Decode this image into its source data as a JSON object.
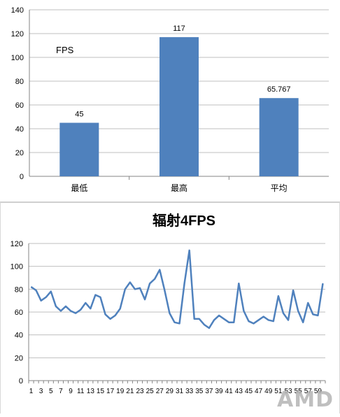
{
  "watermark": "AMD",
  "chart_data": [
    {
      "type": "bar",
      "title": "",
      "annotation": "FPS",
      "categories": [
        "最低",
        "最高",
        "平均"
      ],
      "values": [
        45,
        117,
        65.767
      ],
      "value_labels": [
        "45",
        "117",
        "65.767"
      ],
      "ylim": [
        0,
        140
      ],
      "yticks": [
        0,
        20,
        40,
        60,
        80,
        100,
        120,
        140
      ],
      "grid": true,
      "legend": "none",
      "colors": {
        "bar": "#4f81bd",
        "grid": "#bfbfbf",
        "axis": "#868686"
      }
    },
    {
      "type": "line",
      "title": "辐射4FPS",
      "x": [
        1,
        2,
        3,
        4,
        5,
        6,
        7,
        8,
        9,
        10,
        11,
        12,
        13,
        14,
        15,
        16,
        17,
        18,
        19,
        20,
        21,
        22,
        23,
        24,
        25,
        26,
        27,
        28,
        29,
        30,
        31,
        32,
        33,
        34,
        35,
        36,
        37,
        38,
        39,
        40,
        41,
        42,
        43,
        44,
        45,
        46,
        47,
        48,
        49,
        50,
        51,
        52,
        53,
        54,
        55,
        56,
        57,
        58,
        59,
        60
      ],
      "xtick_labels": [
        "1",
        "3",
        "5",
        "7",
        "9",
        "11",
        "13",
        "15",
        "17",
        "19",
        "21",
        "23",
        "25",
        "27",
        "29",
        "31",
        "33",
        "35",
        "37",
        "39",
        "41",
        "43",
        "45",
        "47",
        "49",
        "51",
        "53",
        "55",
        "57",
        "59"
      ],
      "series": [
        {
          "values": [
            82,
            79,
            70,
            73,
            78,
            65,
            61,
            65,
            61,
            59,
            62,
            68,
            63,
            75,
            73,
            58,
            54,
            57,
            63,
            80,
            86,
            80,
            81,
            71,
            85,
            89,
            97,
            79,
            59,
            51,
            50,
            85,
            114,
            54,
            54,
            49,
            46,
            53,
            57,
            54,
            51,
            51,
            85,
            61,
            52,
            50,
            53,
            56,
            53,
            52,
            74,
            59,
            53,
            79,
            61,
            51,
            68,
            58,
            57,
            85
          ]
        }
      ],
      "ylim": [
        0,
        120
      ],
      "yticks": [
        0,
        20,
        40,
        60,
        80,
        100,
        120
      ],
      "grid": true,
      "legend": "none",
      "colors": {
        "line": "#4f81bd",
        "grid": "#bfbfbf",
        "axis": "#868686"
      }
    }
  ]
}
